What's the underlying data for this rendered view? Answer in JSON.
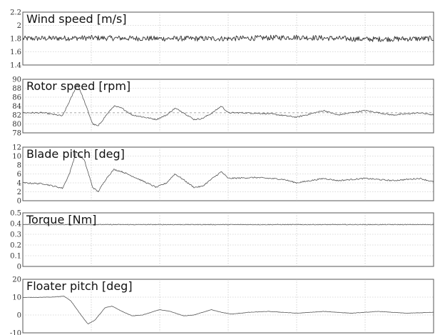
{
  "chart_data": [
    {
      "type": "line",
      "title": "Wind speed [m/s]",
      "ylim": [
        1.4,
        2.2
      ],
      "yticks": [
        "1.4",
        "1.6",
        "1.8",
        "2",
        "2.2"
      ],
      "xlim": [
        0,
        600
      ],
      "grid": true,
      "reference": null,
      "series": [
        {
          "noise": 0.04,
          "points": [
            [
              0,
              1.8
            ],
            [
              100,
              1.81
            ],
            [
              200,
              1.8
            ],
            [
              300,
              1.8
            ],
            [
              400,
              1.82
            ],
            [
              500,
              1.79
            ],
            [
              600,
              1.8
            ]
          ]
        }
      ],
      "color": "#333333"
    },
    {
      "type": "line",
      "title": "Rotor speed [rpm]",
      "ylim": [
        78,
        90
      ],
      "yticks": [
        "78",
        "80",
        "82",
        "84",
        "86",
        "88",
        "90"
      ],
      "xlim": [
        0,
        600
      ],
      "grid": true,
      "reference": 82.5,
      "series": [
        {
          "noise": 0.15,
          "points": [
            [
              0,
              82.5
            ],
            [
              30,
              82.5
            ],
            [
              58,
              81.8
            ],
            [
              68,
              85
            ],
            [
              80,
              89
            ],
            [
              90,
              85
            ],
            [
              102,
              80
            ],
            [
              110,
              79.5
            ],
            [
              122,
              82
            ],
            [
              133,
              84
            ],
            [
              145,
              83.5
            ],
            [
              160,
              82
            ],
            [
              195,
              81
            ],
            [
              210,
              82
            ],
            [
              222,
              83.5
            ],
            [
              232,
              82.8
            ],
            [
              250,
              81
            ],
            [
              262,
              81.2
            ],
            [
              277,
              82.5
            ],
            [
              290,
              84
            ],
            [
              300,
              82.5
            ],
            [
              320,
              82.5
            ],
            [
              360,
              82.3
            ],
            [
              400,
              81.5
            ],
            [
              440,
              83
            ],
            [
              460,
              82
            ],
            [
              500,
              83
            ],
            [
              540,
              82
            ],
            [
              580,
              82.5
            ],
            [
              600,
              82
            ]
          ]
        }
      ],
      "color": "#555555"
    },
    {
      "type": "line",
      "title": "Blade pitch [deg]",
      "ylim": [
        0,
        12
      ],
      "yticks": [
        "0",
        "2",
        "4",
        "6",
        "8",
        "10",
        "12"
      ],
      "xlim": [
        0,
        600
      ],
      "grid": true,
      "reference": null,
      "series": [
        {
          "noise": 0.15,
          "points": [
            [
              0,
              4
            ],
            [
              30,
              3.8
            ],
            [
              58,
              2.8
            ],
            [
              68,
              6
            ],
            [
              78,
              11
            ],
            [
              90,
              9
            ],
            [
              102,
              3
            ],
            [
              110,
              2
            ],
            [
              122,
              5
            ],
            [
              133,
              7
            ],
            [
              145,
              6.5
            ],
            [
              160,
              5.5
            ],
            [
              195,
              3
            ],
            [
              210,
              4
            ],
            [
              222,
              6
            ],
            [
              232,
              5
            ],
            [
              250,
              3
            ],
            [
              262,
              3.2
            ],
            [
              277,
              5
            ],
            [
              290,
              6.5
            ],
            [
              300,
              5
            ],
            [
              340,
              5.2
            ],
            [
              380,
              4.8
            ],
            [
              400,
              4
            ],
            [
              440,
              5
            ],
            [
              460,
              4.5
            ],
            [
              500,
              5
            ],
            [
              540,
              4.5
            ],
            [
              580,
              5
            ],
            [
              600,
              4.2
            ]
          ]
        }
      ],
      "color": "#555555"
    },
    {
      "type": "line",
      "title": "Torque [Nm]",
      "ylim": [
        0,
        0.5
      ],
      "yticks": [
        "0",
        "0.1",
        "0.2",
        "0.3",
        "0.4",
        "0.5"
      ],
      "xlim": [
        0,
        600
      ],
      "grid": true,
      "reference": null,
      "series": [
        {
          "noise": 0.003,
          "points": [
            [
              0,
              0.39
            ],
            [
              600,
              0.39
            ]
          ]
        }
      ],
      "color": "#555555"
    },
    {
      "type": "line",
      "title": "Floater pitch [deg]",
      "ylim": [
        -10,
        20
      ],
      "yticks": [
        "-10",
        "0",
        "10",
        "20"
      ],
      "xlim": [
        0,
        600
      ],
      "grid": true,
      "reference": null,
      "series": [
        {
          "noise": 0.1,
          "points": [
            [
              0,
              9.8
            ],
            [
              40,
              10
            ],
            [
              60,
              10.5
            ],
            [
              70,
              8
            ],
            [
              85,
              0
            ],
            [
              95,
              -5
            ],
            [
              105,
              -3
            ],
            [
              120,
              4
            ],
            [
              130,
              5
            ],
            [
              145,
              2
            ],
            [
              160,
              -0.5
            ],
            [
              175,
              0
            ],
            [
              200,
              3
            ],
            [
              215,
              2
            ],
            [
              235,
              -0.5
            ],
            [
              250,
              0
            ],
            [
              275,
              3
            ],
            [
              290,
              1.5
            ],
            [
              305,
              0.5
            ],
            [
              330,
              1.5
            ],
            [
              360,
              2
            ],
            [
              400,
              1
            ],
            [
              440,
              2
            ],
            [
              480,
              1
            ],
            [
              520,
              2
            ],
            [
              560,
              1
            ],
            [
              600,
              1.5
            ]
          ]
        }
      ],
      "color": "#555555"
    }
  ]
}
